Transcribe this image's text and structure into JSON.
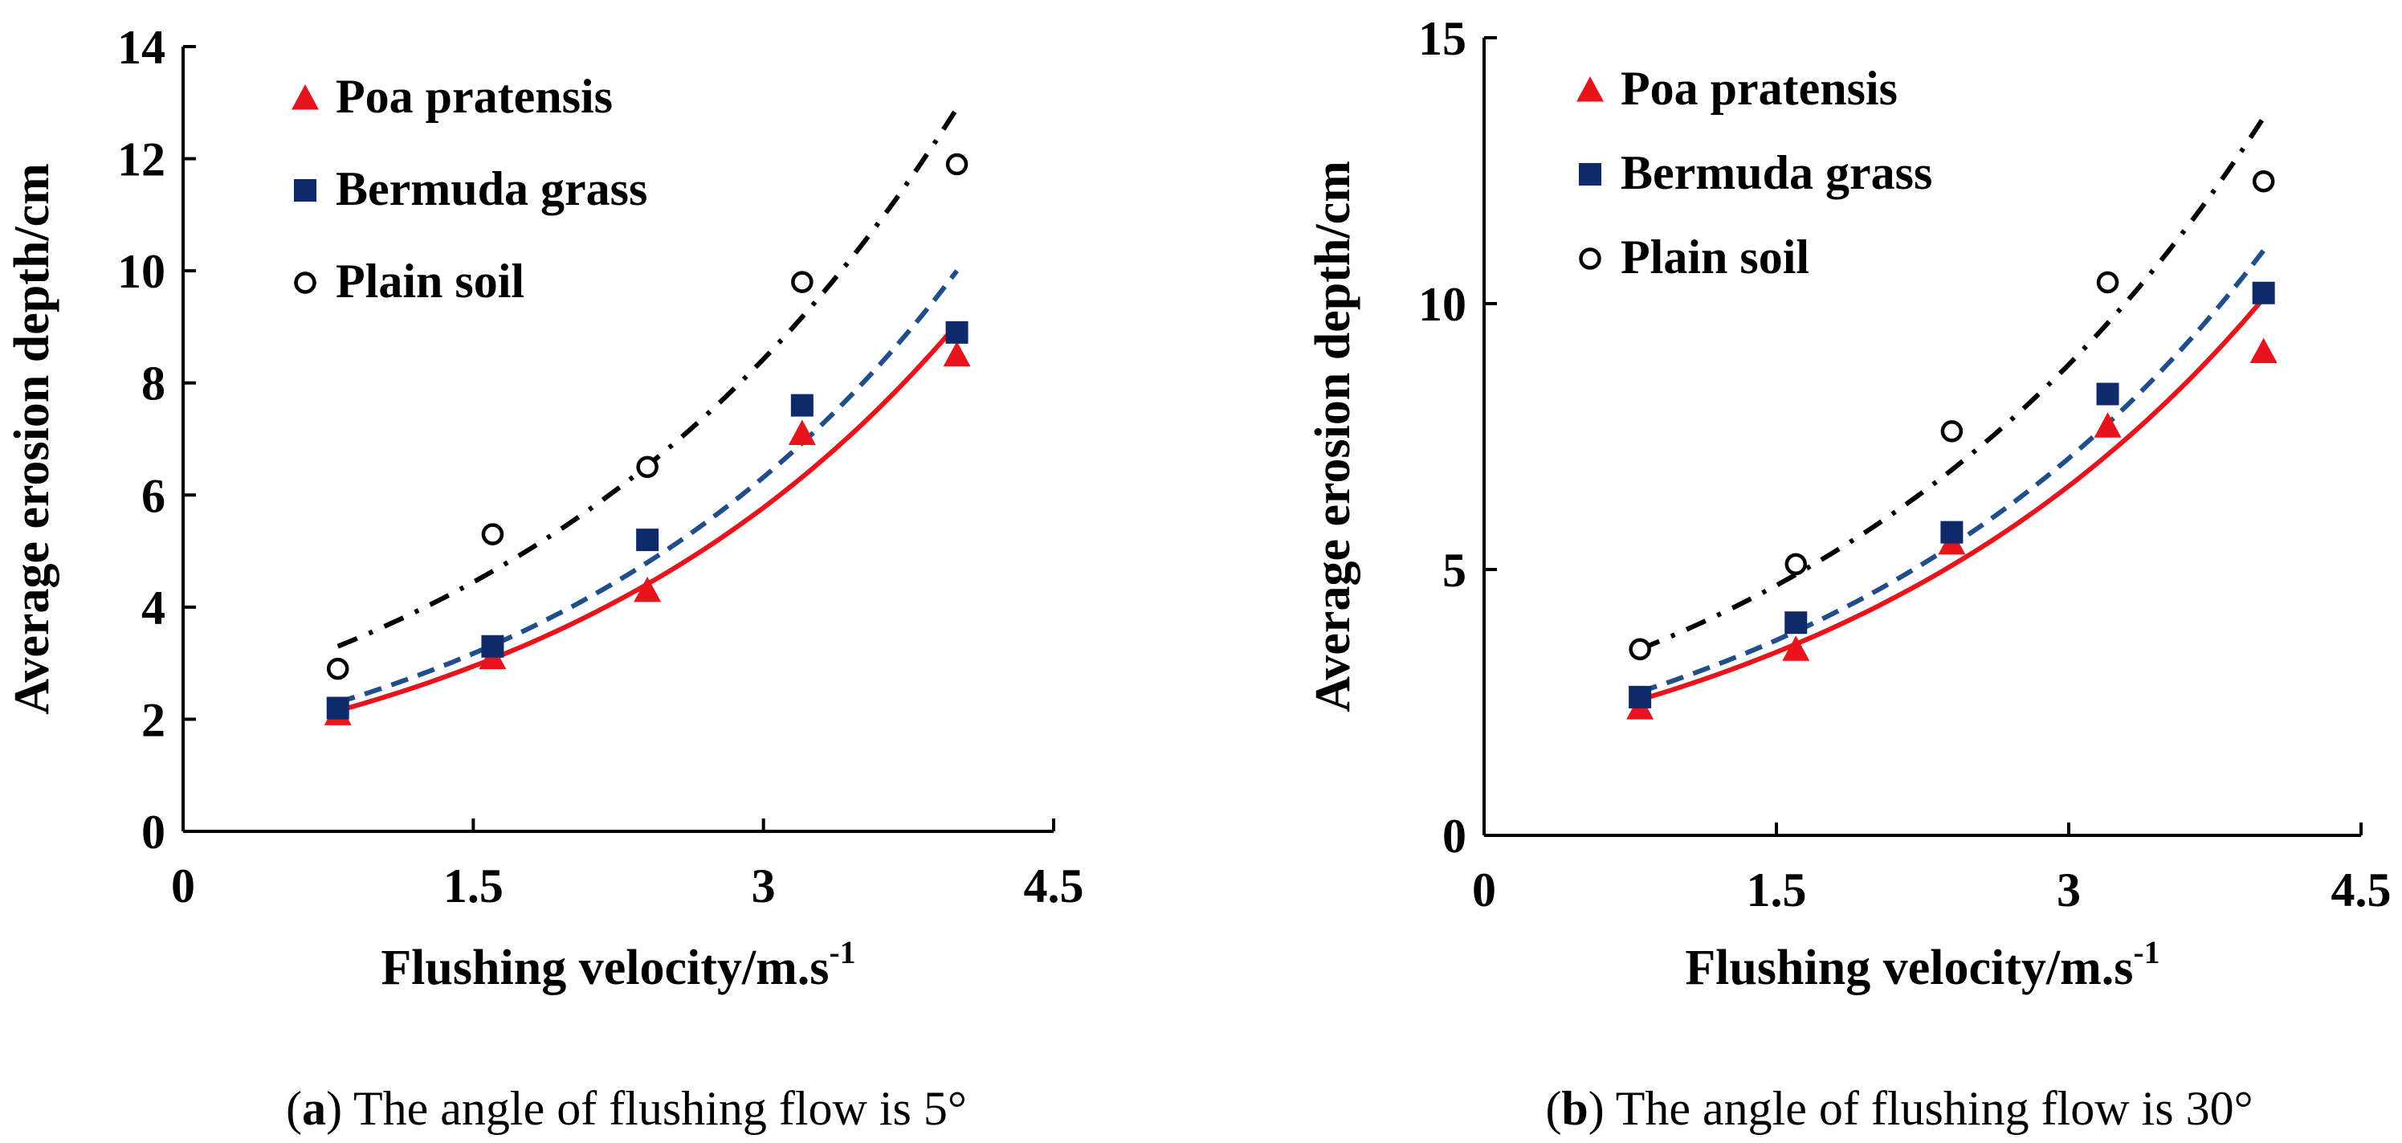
{
  "chart_data": [
    {
      "type": "scatter",
      "panel": "a",
      "caption_letter": "a",
      "caption_text": "The angle of flushing flow is 5°",
      "xlabel": "Flushing velocity/m.s",
      "xlabel_sup": "-1",
      "ylabel": "Average erosion depth/cm",
      "xlim": [
        0,
        4.5
      ],
      "ylim": [
        0,
        14
      ],
      "xticks": [
        0,
        1.5,
        3,
        4.5
      ],
      "xtick_labels": [
        "0",
        "1.5",
        "3",
        "4.5"
      ],
      "yticks": [
        0,
        2,
        4,
        6,
        8,
        10,
        12,
        14
      ],
      "ytick_labels": [
        "0",
        "2",
        "4",
        "6",
        "8",
        "10",
        "12",
        "14"
      ],
      "legend_position": "top-left",
      "series": [
        {
          "name": "Poa pratensis",
          "marker": "triangle",
          "color": "#e8141b",
          "line_style": "solid",
          "x": [
            0.8,
            1.6,
            2.4,
            3.2,
            4.0
          ],
          "values": [
            2.1,
            3.1,
            4.3,
            7.1,
            8.5
          ],
          "fit": [
            2.15,
            9.05
          ]
        },
        {
          "name": "Bermuda grass",
          "marker": "square",
          "color": "#0f2a6b",
          "line_color": "#1f4e8a",
          "line_style": "dashed",
          "x": [
            0.8,
            1.6,
            2.4,
            3.2,
            4.0
          ],
          "values": [
            2.2,
            3.3,
            5.2,
            7.6,
            8.9
          ],
          "fit": [
            2.3,
            10.0
          ]
        },
        {
          "name": "Plain soil",
          "marker": "open-circle",
          "color": "#000000",
          "line_style": "dash-dot",
          "x": [
            0.8,
            1.6,
            2.4,
            3.2,
            4.0
          ],
          "values": [
            2.9,
            5.3,
            6.5,
            9.8,
            11.9
          ],
          "fit": [
            3.3,
            12.9
          ]
        }
      ]
    },
    {
      "type": "scatter",
      "panel": "b",
      "caption_letter": "b",
      "caption_text": "The angle of flushing flow is 30°",
      "xlabel": "Flushing velocity/m.s",
      "xlabel_sup": "-1",
      "ylabel": "Average erosion depth/cm",
      "xlim": [
        0,
        4.5
      ],
      "ylim": [
        0,
        15
      ],
      "xticks": [
        0,
        1.5,
        3,
        4.5
      ],
      "xtick_labels": [
        "0",
        "1.5",
        "3",
        "4.5"
      ],
      "yticks": [
        0,
        5,
        10,
        15
      ],
      "ytick_labels": [
        "0",
        "5",
        "10",
        "15"
      ],
      "legend_position": "top-left",
      "series": [
        {
          "name": "Poa pratensis",
          "marker": "triangle",
          "color": "#e8141b",
          "line_style": "solid",
          "x": [
            0.8,
            1.6,
            2.4,
            3.2,
            4.0
          ],
          "values": [
            2.4,
            3.5,
            5.5,
            7.7,
            9.1
          ],
          "fit": [
            2.55,
            10.1
          ]
        },
        {
          "name": "Bermuda grass",
          "marker": "square",
          "color": "#0f2a6b",
          "line_color": "#1f4e8a",
          "line_style": "dashed",
          "x": [
            0.8,
            1.6,
            2.4,
            3.2,
            4.0
          ],
          "values": [
            2.6,
            4.0,
            5.7,
            8.3,
            10.2
          ],
          "fit": [
            2.7,
            11.0
          ]
        },
        {
          "name": "Plain soil",
          "marker": "open-circle",
          "color": "#000000",
          "line_style": "dash-dot",
          "x": [
            0.8,
            1.6,
            2.4,
            3.2,
            4.0
          ],
          "values": [
            3.5,
            5.1,
            7.6,
            10.4,
            12.3
          ],
          "fit": [
            3.5,
            13.5
          ]
        }
      ]
    }
  ]
}
